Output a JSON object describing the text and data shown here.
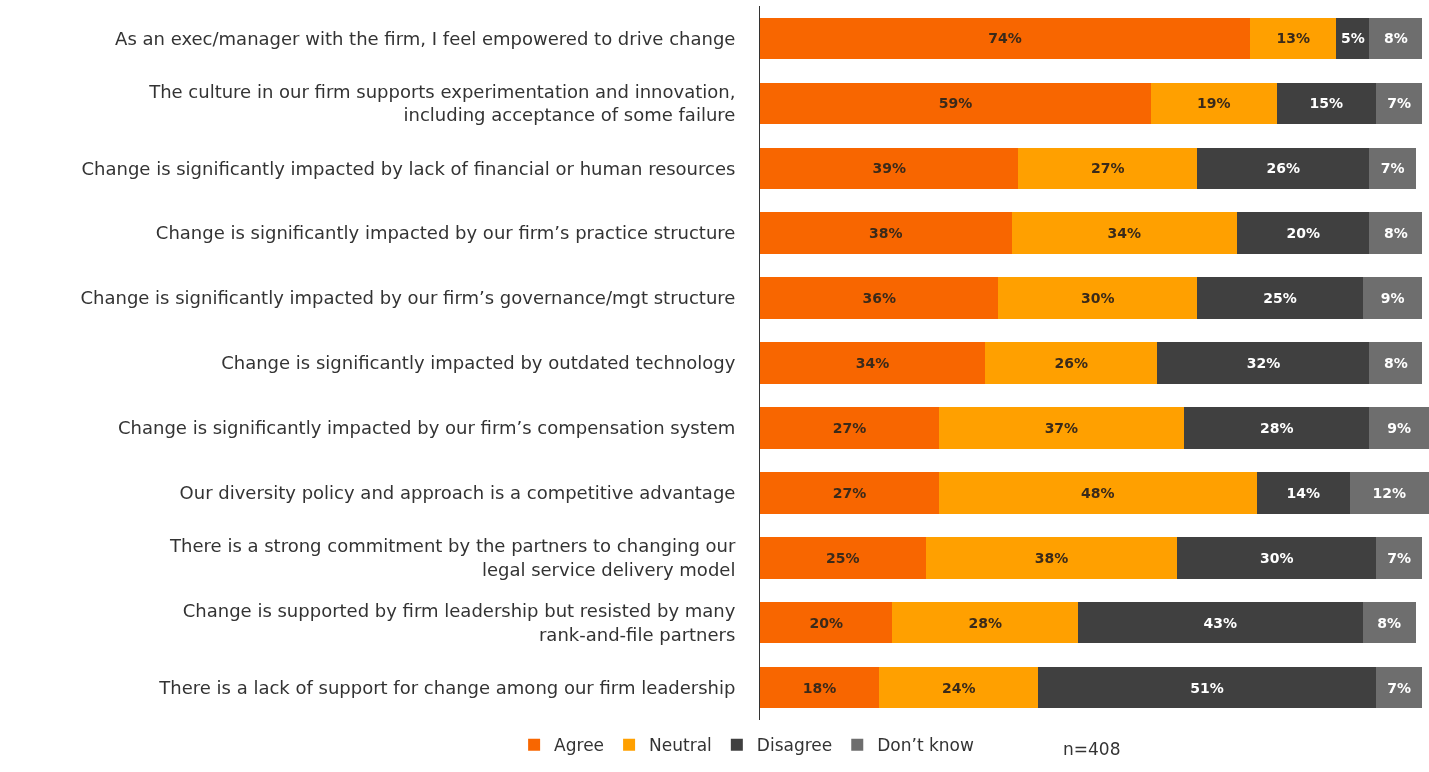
{
  "chart_data": {
    "type": "bar",
    "orientation": "horizontal",
    "stacked": true,
    "tick_labels": "y",
    "legend": "bottom",
    "xlim": [
      0,
      101
    ],
    "categories": [
      "As an exec/manager with the firm, I feel empowered to drive change",
      "The culture in our firm supports experimentation and innovation, including acceptance of some failure",
      "Change is significantly impacted by lack of financial or human resources",
      "Change is significantly impacted by our firm’s practice structure",
      "Change is significantly impacted by our firm’s governance/mgt structure",
      "Change is significantly impacted by outdated technology",
      "Change is significantly impacted by our firm’s compensation system",
      "Our diversity policy and approach is a competitive advantage",
      "There is a strong commitment by the partners to changing our legal service delivery model",
      "Change is supported by firm leadership but resisted by many rank-and-file partners",
      "There is a lack of support for change among our firm leadership"
    ],
    "series": [
      {
        "name": "Agree",
        "color": "#f86600",
        "values": [
          74,
          59,
          39,
          38,
          36,
          34,
          27,
          27,
          25,
          20,
          18
        ],
        "value_labels": [
          "74%",
          "59%",
          "39%",
          "38%",
          "36%",
          "34%",
          "27%",
          "27%",
          "25%",
          "20%",
          "18%"
        ]
      },
      {
        "name": "Neutral",
        "color": "#ffa000",
        "values": [
          13,
          19,
          27,
          34,
          30,
          26,
          37,
          48,
          38,
          28,
          24
        ],
        "value_labels": [
          "13%",
          "19%",
          "27%",
          "34%",
          "30%",
          "26%",
          "37%",
          "48%",
          "38%",
          "28%",
          "24%"
        ]
      },
      {
        "name": "Disagree",
        "color": "#404040",
        "values": [
          5,
          15,
          26,
          20,
          25,
          32,
          28,
          14,
          30,
          43,
          51
        ],
        "value_labels": [
          "5%",
          "15%",
          "26%",
          "20%",
          "25%",
          "32%",
          "28%",
          "14%",
          "30%",
          "43%",
          "51%"
        ]
      },
      {
        "name": "Don’t know",
        "color": "#6e6e6e",
        "values": [
          8,
          7,
          7,
          8,
          9,
          8,
          9,
          12,
          7,
          8,
          7
        ],
        "value_labels": [
          "8%",
          "7%",
          "7%",
          "8%",
          "9%",
          "8%",
          "9%",
          "12%",
          "7%",
          "8%",
          "7%"
        ]
      }
    ],
    "annotations": [
      "n=408"
    ]
  }
}
